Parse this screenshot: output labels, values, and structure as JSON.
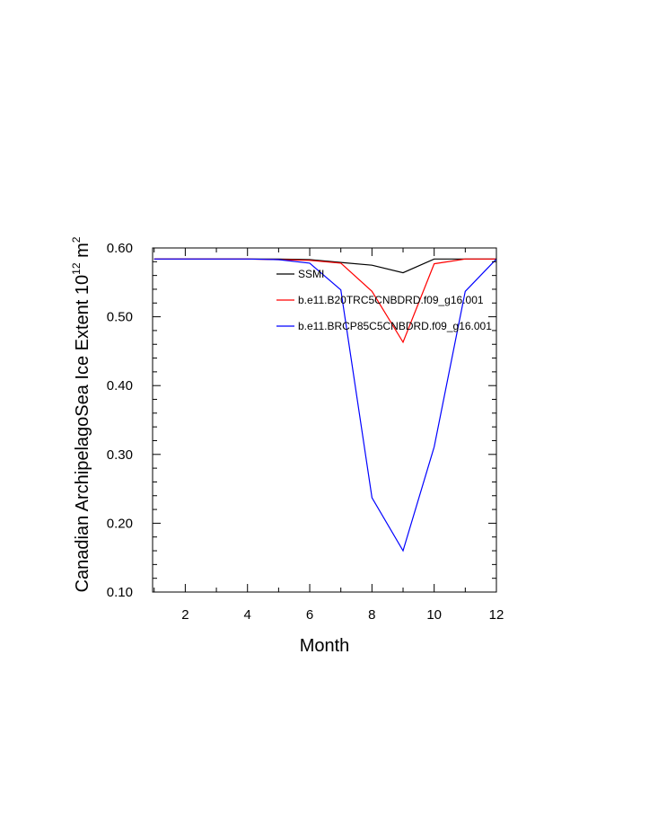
{
  "chart_data": {
    "type": "line",
    "title": "",
    "xlabel": "Month",
    "ylabel": "Canadian ArchipelagoSea Ice Extent 10",
    "ylabel_exp": "12",
    "ylabel_unit": " m",
    "ylabel_unit_exp": "2",
    "xlim": [
      0.95,
      12
    ],
    "ylim": [
      0.1,
      0.6
    ],
    "x": [
      1,
      2,
      3,
      4,
      5,
      6,
      7,
      8,
      9,
      10,
      11,
      12
    ],
    "xticks": [
      2,
      4,
      6,
      8,
      10,
      12
    ],
    "xtick_labels": [
      "2",
      "4",
      "6",
      "8",
      "10",
      "12"
    ],
    "yticks": [
      0.1,
      0.2,
      0.3,
      0.4,
      0.5,
      0.6
    ],
    "ytick_labels": [
      "0.10",
      "0.20",
      "0.30",
      "0.40",
      "0.50",
      "0.60"
    ],
    "grid": false,
    "legend_position": "top-right",
    "series": [
      {
        "name": "SSMI",
        "color": "#000000",
        "values": [
          0.584,
          0.584,
          0.584,
          0.584,
          0.584,
          0.583,
          0.579,
          0.575,
          0.564,
          0.584,
          0.584,
          0.584
        ]
      },
      {
        "name": "b.e11.B20TRC5CNBDRD.f09_g16.001",
        "color": "#ff0000",
        "values": [
          0.584,
          0.584,
          0.584,
          0.584,
          0.583,
          0.582,
          0.578,
          0.537,
          0.463,
          0.577,
          0.584,
          0.584
        ]
      },
      {
        "name": "b.e11.BRCP85C5CNBDRD.f09_g16.001",
        "color": "#0000ff",
        "values": [
          0.584,
          0.584,
          0.584,
          0.584,
          0.583,
          0.578,
          0.539,
          0.237,
          0.16,
          0.311,
          0.537,
          0.584
        ]
      }
    ]
  }
}
